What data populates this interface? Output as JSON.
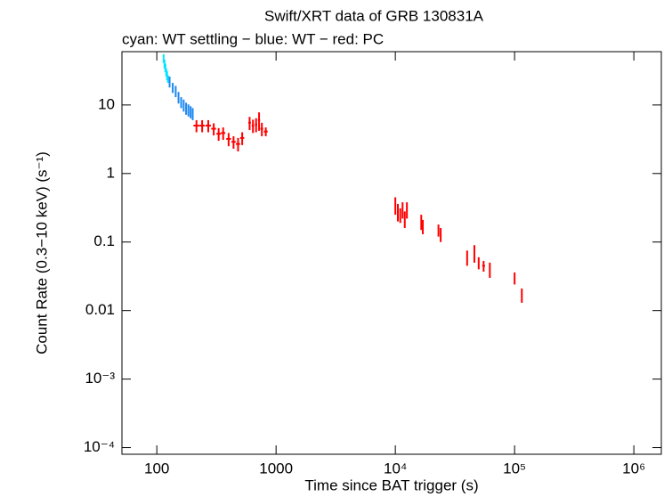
{
  "chart_data": {
    "type": "scatter",
    "title": "Swift/XRT data of GRB 130831A",
    "subtitle": "cyan: WT settling − blue: WT − red: PC",
    "x_label": "Time since BAT trigger (s)",
    "y_label": "Count Rate (0.3−10 keV) (s⁻¹)",
    "xscale": "log",
    "yscale": "log",
    "xlim": [
      51,
      1700000
    ],
    "ylim": [
      8e-05,
      60
    ],
    "xticks": [
      100,
      1000,
      {
        "value": 10000,
        "label": "10⁴"
      },
      {
        "value": 100000,
        "label": "10⁵"
      },
      {
        "value": 1000000,
        "label": "10⁶"
      }
    ],
    "yticks": [
      {
        "value": 0.0001,
        "label": "10⁻⁴"
      },
      {
        "value": 0.001,
        "label": "10⁻³"
      },
      0.01,
      0.1,
      1,
      10
    ],
    "series": [
      {
        "name": "WT settling",
        "color": "#00e5ff",
        "x": [
          114,
          116,
          118,
          120,
          122,
          124
        ],
        "values": [
          48,
          40,
          35,
          30,
          27,
          24
        ],
        "yerr": [
          7,
          6,
          5,
          4,
          4,
          3
        ]
      },
      {
        "name": "WT",
        "color": "#1e88f0",
        "x": [
          128,
          136,
          144,
          152,
          160,
          168,
          176,
          184,
          192,
          200
        ],
        "values": [
          22,
          18,
          16,
          13,
          11,
          10,
          9,
          8.5,
          8,
          7.5
        ],
        "yerr": [
          4,
          3,
          3,
          2.5,
          2,
          2,
          1.8,
          1.7,
          1.6,
          1.5
        ]
      },
      {
        "name": "PC",
        "color": "#ff0000",
        "x": [
          215,
          240,
          270,
          300,
          330,
          360,
          400,
          440,
          480,
          520,
          600,
          640,
          680,
          720,
          760,
          820,
          10000,
          10500,
          11000,
          11500,
          12000,
          12500,
          16500,
          17000,
          23000,
          24000,
          40000,
          46000,
          50000,
          55000,
          62000,
          100000,
          115000
        ],
        "values": [
          5,
          5,
          5,
          4.5,
          3.8,
          3.9,
          3.2,
          2.9,
          2.7,
          3.3,
          5.5,
          5,
          5.2,
          6,
          4.5,
          4.1,
          0.35,
          0.28,
          0.25,
          0.3,
          0.22,
          0.3,
          0.2,
          0.17,
          0.15,
          0.13,
          0.06,
          0.07,
          0.05,
          0.045,
          0.04,
          0.03,
          0.017
        ],
        "xerr": [
          12,
          12,
          14,
          14,
          14,
          15,
          18,
          18,
          20,
          20,
          15,
          15,
          15,
          15,
          20,
          30,
          150,
          150,
          150,
          150,
          150,
          150,
          200,
          200,
          250,
          250,
          400,
          400,
          500,
          1500,
          600,
          800,
          800
        ],
        "yerr": [
          1,
          1,
          1,
          0.9,
          0.8,
          0.8,
          0.7,
          0.6,
          0.6,
          0.7,
          1.2,
          1.1,
          1.2,
          1.8,
          1,
          0.6,
          0.1,
          0.08,
          0.06,
          0.08,
          0.06,
          0.08,
          0.05,
          0.04,
          0.03,
          0.03,
          0.015,
          0.02,
          0.01,
          0.008,
          0.01,
          0.006,
          0.004
        ]
      }
    ]
  }
}
